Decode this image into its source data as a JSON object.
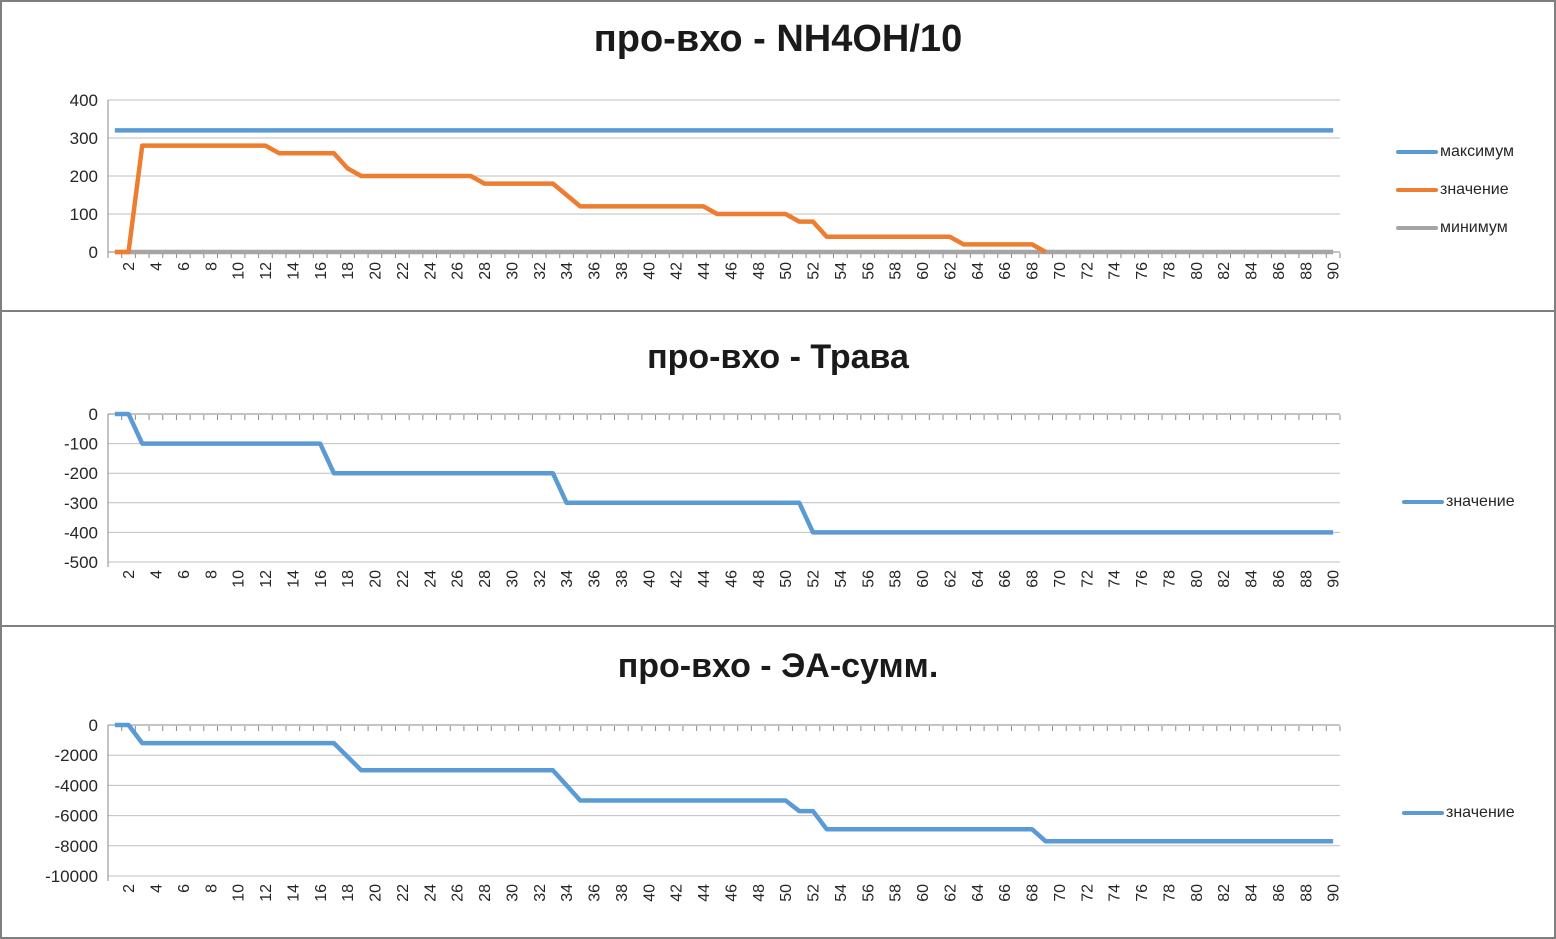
{
  "page": {
    "background": "#ffffff",
    "panel_border_color": "#7f7f7f"
  },
  "colors": {
    "blue": "#5B9BD5",
    "orange": "#ED7D31",
    "gray": "#A5A5A5",
    "gridline": "#BFBFBF",
    "axis": "#898989",
    "tick_label": "#262626",
    "title": "#1a1a1a"
  },
  "charts": [
    {
      "title": "про-вхо - NH4OH/10",
      "legend": [
        {
          "label": "максимум",
          "color": "#5B9BD5"
        },
        {
          "label": "значение",
          "color": "#ED7D31"
        },
        {
          "label": "минимум",
          "color": "#A5A5A5"
        }
      ],
      "chart_data": {
        "type": "line",
        "title": "про-вхо - NH4OH/10",
        "xlabel": "",
        "ylabel": "",
        "x_range": [
          1,
          90
        ],
        "x_tick_labels": [
          "2",
          "4",
          "6",
          "8",
          "10",
          "12",
          "14",
          "16",
          "18",
          "20",
          "22",
          "24",
          "26",
          "28",
          "30",
          "32",
          "34",
          "36",
          "38",
          "40",
          "42",
          "44",
          "46",
          "48",
          "50",
          "52",
          "54",
          "56",
          "58",
          "60",
          "62",
          "64",
          "66",
          "68",
          "70",
          "72",
          "74",
          "76",
          "78",
          "80",
          "82",
          "84",
          "86",
          "88",
          "90"
        ],
        "ylim": [
          0,
          400
        ],
        "yticks": [
          0,
          100,
          200,
          300,
          400
        ],
        "grid": true,
        "legend_position": "right",
        "series": [
          {
            "name": "максимум",
            "color": "#5B9BD5",
            "points": [
              [
                1,
                320
              ],
              [
                90,
                320
              ]
            ]
          },
          {
            "name": "значение",
            "color": "#ED7D31",
            "points": [
              [
                1,
                0
              ],
              [
                2,
                0
              ],
              [
                3,
                280
              ],
              [
                12,
                280
              ],
              [
                13,
                260
              ],
              [
                17,
                260
              ],
              [
                18,
                220
              ],
              [
                19,
                200
              ],
              [
                27,
                200
              ],
              [
                28,
                180
              ],
              [
                33,
                180
              ],
              [
                34,
                150
              ],
              [
                35,
                120
              ],
              [
                44,
                120
              ],
              [
                45,
                100
              ],
              [
                50,
                100
              ],
              [
                51,
                80
              ],
              [
                52,
                80
              ],
              [
                53,
                40
              ],
              [
                62,
                40
              ],
              [
                63,
                20
              ],
              [
                68,
                20
              ],
              [
                69,
                0
              ]
            ]
          },
          {
            "name": "минимум",
            "color": "#A5A5A5",
            "points": [
              [
                1,
                0
              ],
              [
                90,
                0
              ]
            ]
          }
        ]
      }
    },
    {
      "title": "про-вхо - Трава",
      "legend": [
        {
          "label": "значение",
          "color": "#5B9BD5"
        }
      ],
      "chart_data": {
        "type": "line",
        "title": "про-вхо - Трава",
        "xlabel": "",
        "ylabel": "",
        "x_range": [
          1,
          90
        ],
        "x_tick_labels": [
          "2",
          "4",
          "6",
          "8",
          "10",
          "12",
          "14",
          "16",
          "18",
          "20",
          "22",
          "24",
          "26",
          "28",
          "30",
          "32",
          "34",
          "36",
          "38",
          "40",
          "42",
          "44",
          "46",
          "48",
          "50",
          "52",
          "54",
          "56",
          "58",
          "60",
          "62",
          "64",
          "66",
          "68",
          "70",
          "72",
          "74",
          "76",
          "78",
          "80",
          "82",
          "84",
          "86",
          "88",
          "90"
        ],
        "ylim": [
          -500,
          0
        ],
        "yticks": [
          0,
          -100,
          -200,
          -300,
          -400,
          -500
        ],
        "grid": true,
        "legend_position": "right",
        "series": [
          {
            "name": "значение",
            "color": "#5B9BD5",
            "points": [
              [
                1,
                0
              ],
              [
                2,
                0
              ],
              [
                3,
                -100
              ],
              [
                16,
                -100
              ],
              [
                17,
                -200
              ],
              [
                33,
                -200
              ],
              [
                34,
                -300
              ],
              [
                51,
                -300
              ],
              [
                52,
                -400
              ],
              [
                90,
                -400
              ]
            ]
          }
        ]
      }
    },
    {
      "title": "про-вхо - ЭА-сумм.",
      "legend": [
        {
          "label": "значение",
          "color": "#5B9BD5"
        }
      ],
      "chart_data": {
        "type": "line",
        "title": "про-вхо - ЭА-сумм.",
        "xlabel": "",
        "ylabel": "",
        "x_range": [
          1,
          90
        ],
        "x_tick_labels": [
          "2",
          "4",
          "6",
          "8",
          "10",
          "12",
          "14",
          "16",
          "18",
          "20",
          "22",
          "24",
          "26",
          "28",
          "30",
          "32",
          "34",
          "36",
          "38",
          "40",
          "42",
          "44",
          "46",
          "48",
          "50",
          "52",
          "54",
          "56",
          "58",
          "60",
          "62",
          "64",
          "66",
          "68",
          "70",
          "72",
          "74",
          "76",
          "78",
          "80",
          "82",
          "84",
          "86",
          "88",
          "90"
        ],
        "ylim": [
          -10000,
          0
        ],
        "yticks": [
          0,
          -2000,
          -4000,
          -6000,
          -8000,
          -10000
        ],
        "grid": true,
        "legend_position": "right",
        "series": [
          {
            "name": "значение",
            "color": "#5B9BD5",
            "points": [
              [
                1,
                0
              ],
              [
                2,
                0
              ],
              [
                3,
                -1200
              ],
              [
                17,
                -1200
              ],
              [
                18,
                -2100
              ],
              [
                19,
                -3000
              ],
              [
                33,
                -3000
              ],
              [
                34,
                -4000
              ],
              [
                35,
                -5000
              ],
              [
                50,
                -5000
              ],
              [
                51,
                -5700
              ],
              [
                52,
                -5700
              ],
              [
                53,
                -6900
              ],
              [
                68,
                -6900
              ],
              [
                69,
                -7700
              ],
              [
                90,
                -7700
              ]
            ]
          }
        ]
      }
    }
  ]
}
